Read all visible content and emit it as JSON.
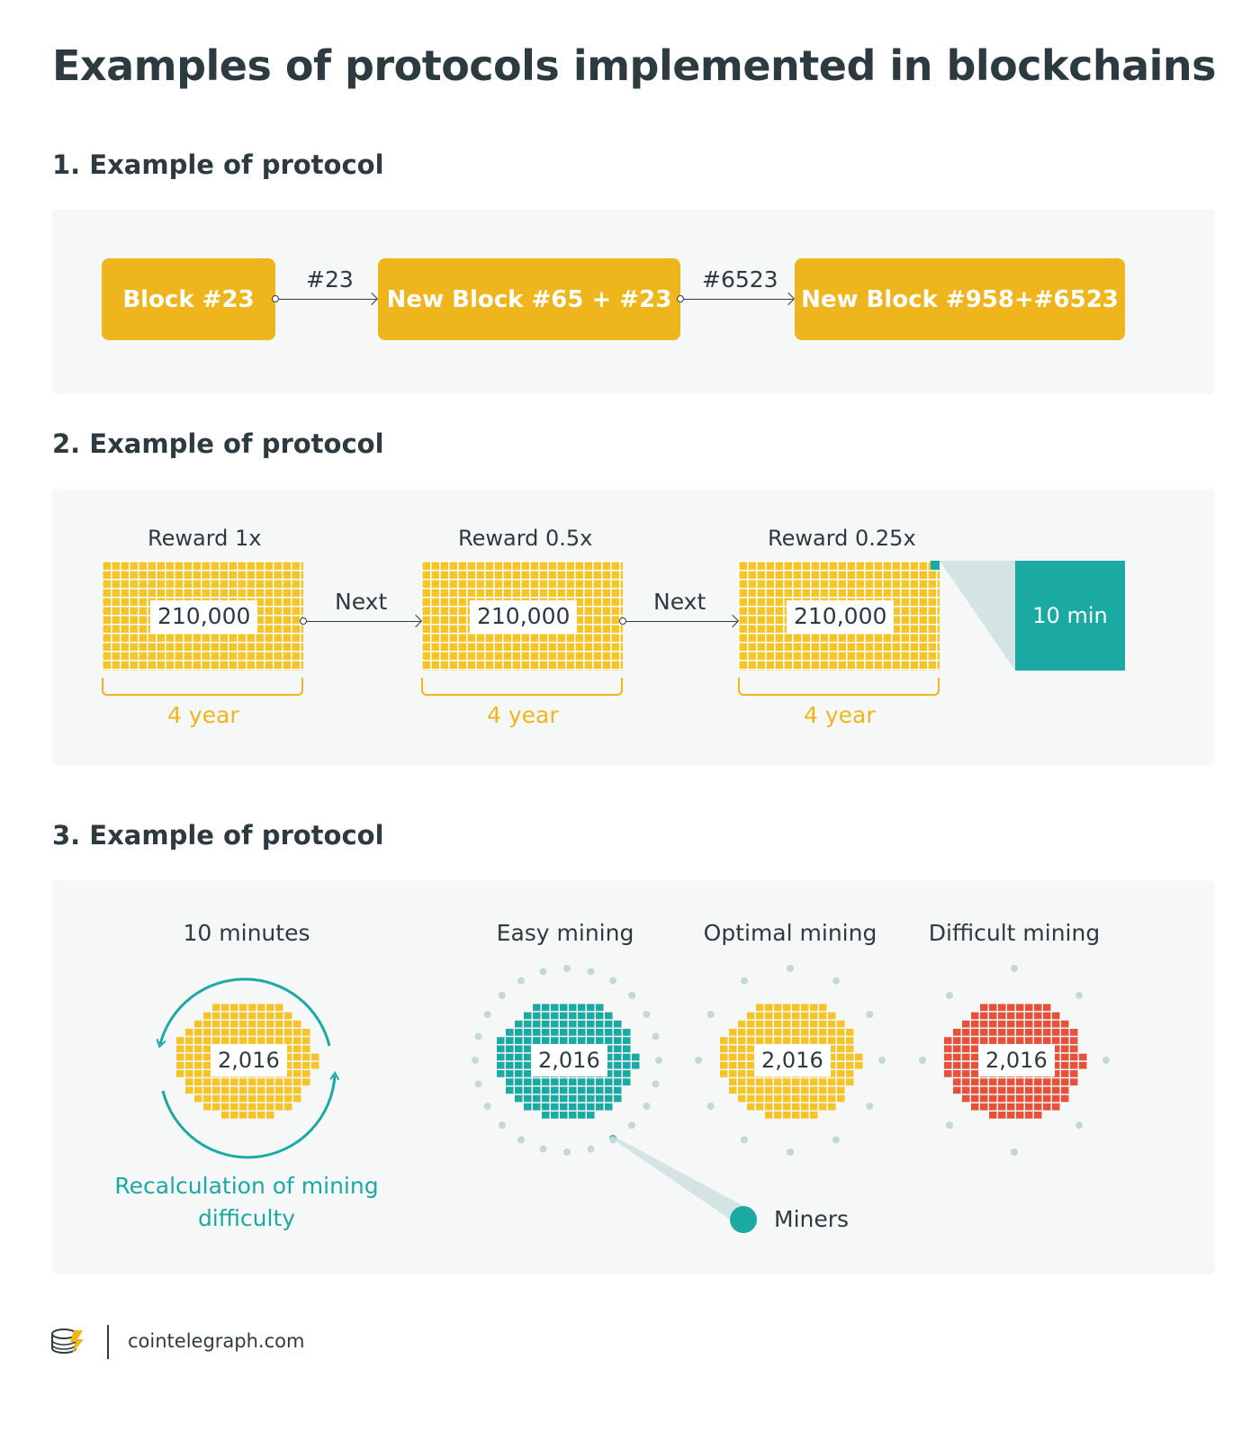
{
  "title": "Examples of protocols implemented in blockchains",
  "section1": {
    "title": "1. Example of protocol",
    "blocks": [
      "Block #23",
      "New Block #65 + #23",
      "New Block #958+#6523"
    ],
    "arrows": [
      "#23",
      "#6523"
    ]
  },
  "section2": {
    "title": "2. Example of protocol",
    "groups": [
      {
        "reward": "Reward 1x",
        "count": "210,000",
        "period": "4 year"
      },
      {
        "reward": "Reward 0.5x",
        "count": "210,000",
        "period": "4 year"
      },
      {
        "reward": "Reward 0.25x",
        "count": "210,000",
        "period": "4 year"
      }
    ],
    "arrows": [
      "Next",
      "Next"
    ],
    "time_box": "10 min"
  },
  "section3": {
    "title": "3. Example of protocol",
    "cycle": {
      "label": "10 minutes",
      "count": "2,016",
      "caption_line1": "Recalculation of mining",
      "caption_line2": "difficulty"
    },
    "modes": [
      {
        "label": "Easy mining",
        "count": "2,016",
        "color": "#1ba9a3"
      },
      {
        "label": "Optimal mining",
        "count": "2,016",
        "color": "#f5c428"
      },
      {
        "label": "Difficult mining",
        "count": "2,016",
        "color": "#e8503a"
      }
    ],
    "miners_label": "Miners"
  },
  "colors": {
    "yellow": "#efb51c",
    "teal": "#1ba9a3",
    "red": "#e8503a",
    "dark": "#2d3b40"
  },
  "footer": {
    "site": "cointelegraph.com",
    "logo_icon": "cointelegraph-logo-icon"
  }
}
